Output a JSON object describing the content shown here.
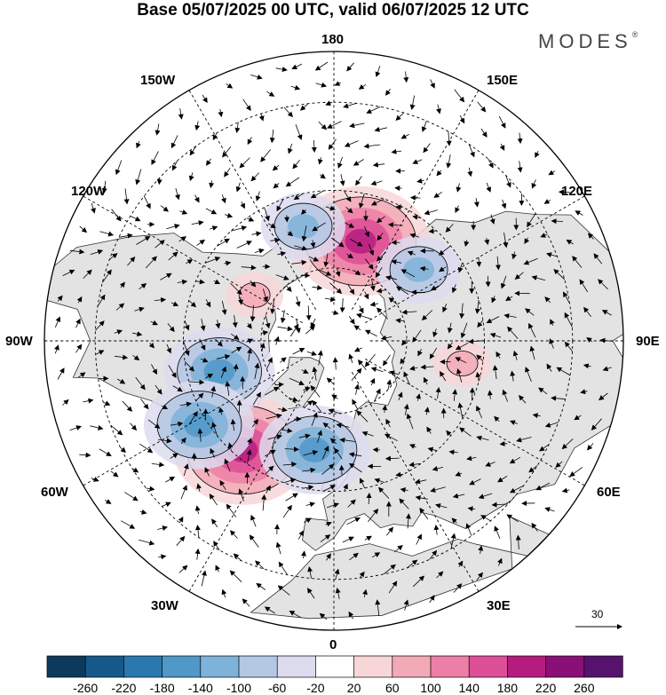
{
  "title": "Base 05/07/2025 00 UTC, valid 06/07/2025 12 UTC",
  "brand": {
    "name": "MODES",
    "mark": "®"
  },
  "map": {
    "projection": "north-polar-stereographic",
    "labels": {
      "lon_180": "180",
      "lon_150w": "150W",
      "lon_150e": "150E",
      "lon_120w": "120W",
      "lon_120e": "120E",
      "lon_90w": "90W",
      "lon_90e": "90E",
      "lon_60w": "60W",
      "lon_60e": "60E",
      "lon_30w": "30W",
      "lon_30e": "30E",
      "lon_0": "0"
    },
    "vector_scale_label": "30",
    "anomaly_centers": [
      {
        "lon_deg": -40,
        "lat_deg": 52,
        "value": 180,
        "kind": "positive"
      },
      {
        "lon_deg": -10,
        "lat_deg": 60,
        "value": -140,
        "kind": "negative"
      },
      {
        "lon_deg": -75,
        "lat_deg": 58,
        "value": -140,
        "kind": "negative"
      },
      {
        "lon_deg": -58,
        "lat_deg": 48,
        "value": -120,
        "kind": "negative"
      },
      {
        "lon_deg": 165,
        "lat_deg": 62,
        "value": 160,
        "kind": "positive"
      },
      {
        "lon_deg": -165,
        "lat_deg": 58,
        "value": -100,
        "kind": "negative"
      },
      {
        "lon_deg": 130,
        "lat_deg": 60,
        "value": -80,
        "kind": "negative"
      },
      {
        "lon_deg": -120,
        "lat_deg": 65,
        "value": 60,
        "kind": "positive"
      },
      {
        "lon_deg": 80,
        "lat_deg": 55,
        "value": 60,
        "kind": "positive"
      }
    ]
  },
  "colorbar": {
    "labels": [
      "-260",
      "-220",
      "-180",
      "-140",
      "-100",
      "-60",
      "-20",
      "20",
      "60",
      "100",
      "140",
      "180",
      "220",
      "260"
    ],
    "colors": [
      "#0d3a5c",
      "#17598a",
      "#2b78b0",
      "#4f98c8",
      "#7fb2d8",
      "#b4c7e3",
      "#dcdcee",
      "#ffffff",
      "#f8d6d8",
      "#f2aab6",
      "#ec7fa6",
      "#dd4f96",
      "#b61c80",
      "#8a1078",
      "#56136e"
    ]
  }
}
